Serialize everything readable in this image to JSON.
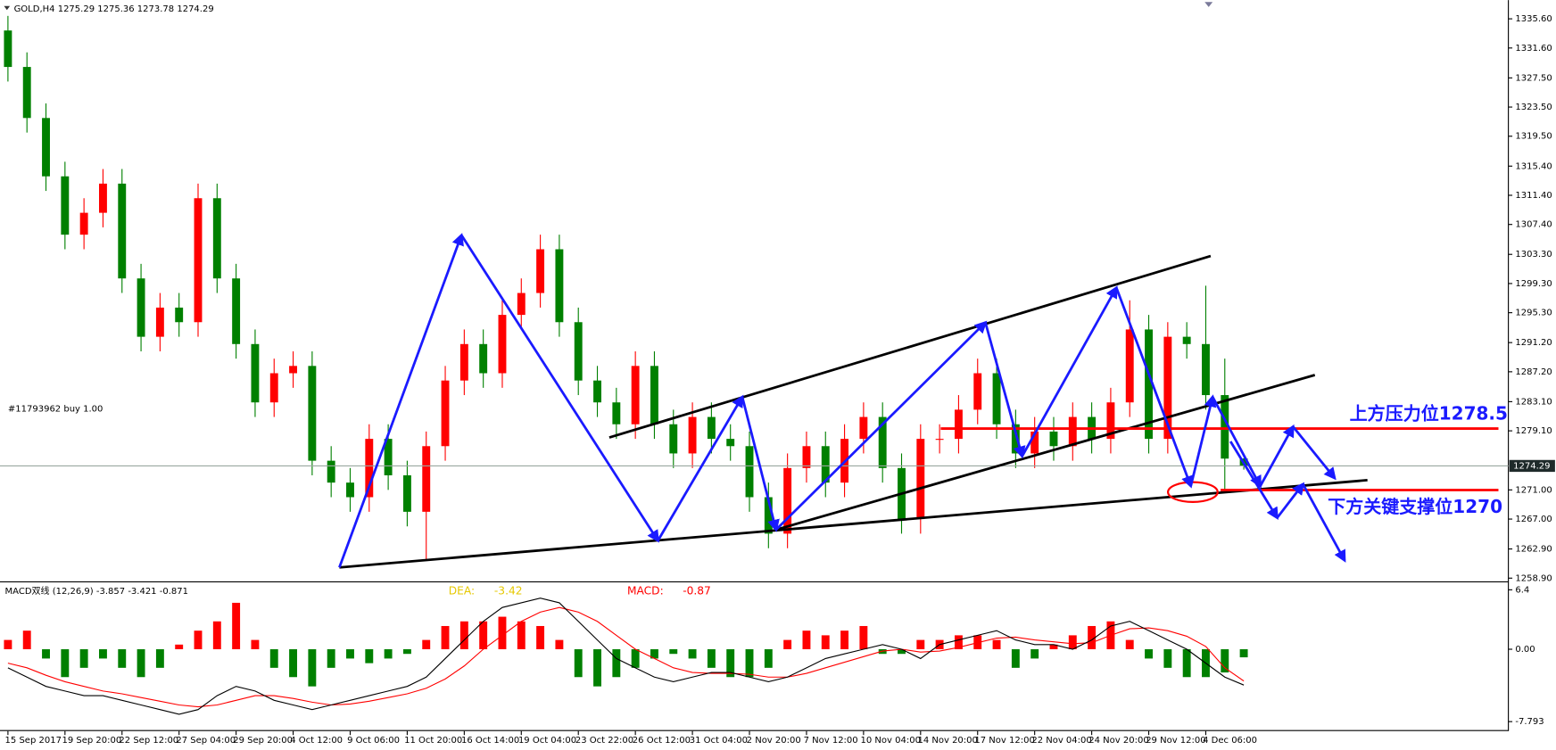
{
  "chart_data": {
    "type": "candlestick",
    "symbol": "GOLD,H4",
    "order_label": "#11793962 buy 1.00",
    "categories": [
      "15 Sep 2017",
      null,
      null,
      "19 Sep 20:00",
      null,
      null,
      "22 Sep 12:00",
      null,
      null,
      "27 Sep 04:00",
      null,
      null,
      "29 Sep 20:00",
      null,
      null,
      "4 Oct 12:00",
      null,
      null,
      "9 Oct 06:00",
      null,
      null,
      "11 Oct 20:00",
      null,
      null,
      "16 Oct 14:00",
      null,
      null,
      "19 Oct 04:00",
      null,
      null,
      "23 Oct 22:00",
      null,
      null,
      "26 Oct 12:00",
      null,
      null,
      "31 Oct 04:00",
      null,
      null,
      "2 Nov 20:00",
      null,
      null,
      "7 Nov 12:00",
      null,
      null,
      "10 Nov 04:00",
      null,
      null,
      "14 Nov 20:00",
      null,
      null,
      "17 Nov 12:00",
      null,
      null,
      "22 Nov 04:00",
      null,
      null,
      "24 Nov 20:00",
      null,
      null,
      "29 Nov 12:00",
      null,
      null,
      "4 Dec 06:00",
      null,
      null
    ],
    "open": [
      1334,
      1329,
      1322,
      1314,
      1306,
      1309,
      1313,
      1300,
      1292,
      1296,
      1294,
      1311,
      1300,
      1291,
      1283,
      1287,
      1288,
      1275,
      1272,
      1270,
      1278,
      1273,
      1268,
      1277,
      1286,
      1291,
      1287,
      1295,
      1298,
      1304,
      1294,
      1286,
      1283,
      1280,
      1288,
      1280,
      1276,
      1281,
      1278,
      1277,
      1270,
      1265,
      1274,
      1277,
      1272,
      1278,
      1281,
      1274,
      1267,
      1278,
      1278,
      1282,
      1287,
      1280,
      1276,
      1279,
      1277,
      1281,
      1278,
      1283,
      1293,
      1278,
      1292,
      1291,
      1284,
      1275.29
    ],
    "high": [
      1336,
      1331,
      1324,
      1316,
      1311,
      1315,
      1315,
      1302,
      1298,
      1298,
      1313,
      1313,
      1302,
      1293,
      1289,
      1290,
      1290,
      1277,
      1274,
      1280,
      1280,
      1275,
      1279,
      1288,
      1293,
      1293,
      1297,
      1300,
      1306,
      1306,
      1296,
      1288,
      1285,
      1290,
      1290,
      1282,
      1283,
      1283,
      1280,
      1279,
      1272,
      1276,
      1279,
      1279,
      1280,
      1283,
      1283,
      1276,
      1280,
      1280,
      1284,
      1289,
      1289,
      1282,
      1281,
      1281,
      1283,
      1283,
      1285,
      1297,
      1295,
      1294,
      1294,
      1299,
      1289,
      1275.36
    ],
    "low": [
      1327,
      1320,
      1312,
      1304,
      1304,
      1307,
      1298,
      1290,
      1290,
      1292,
      1292,
      1298,
      1289,
      1281,
      1281,
      1285,
      1273,
      1270,
      1268,
      1268,
      1271,
      1266,
      1261.5,
      1275,
      1284,
      1285,
      1285,
      1293,
      1296,
      1292,
      1284,
      1281,
      1278,
      1278,
      1278,
      1274,
      1274,
      1276,
      1275,
      1268,
      1263,
      1263,
      1272,
      1270,
      1270,
      1276,
      1272,
      1265,
      1265,
      1276,
      1276,
      1280,
      1278,
      1274,
      1274,
      1275,
      1275,
      1276,
      1276,
      1281,
      1276,
      1276,
      1289,
      1282,
      1271,
      1273.78
    ],
    "close": [
      1329,
      1322,
      1314,
      1306,
      1309,
      1313,
      1300,
      1292,
      1296,
      1294,
      1311,
      1300,
      1291,
      1283,
      1287,
      1288,
      1275,
      1272,
      1270,
      1278,
      1273,
      1268,
      1277,
      1286,
      1291,
      1287,
      1295,
      1298,
      1304,
      1294,
      1286,
      1283,
      1280,
      1288,
      1280,
      1276,
      1281,
      1278,
      1277,
      1270,
      1265,
      1274,
      1277,
      1272,
      1278,
      1281,
      1274,
      1267,
      1278,
      1278,
      1282,
      1287,
      1280,
      1276,
      1279,
      1277,
      1281,
      1278,
      1283,
      1293,
      1278,
      1292,
      1291,
      1284,
      1275.29,
      1274.29
    ],
    "up_color": "#ff0000",
    "down_color": "#008000",
    "ylim": [
      1258.6,
      1337.9
    ],
    "yticks": [
      {
        "value": 1335.6,
        "label": "1335.60"
      },
      {
        "value": 1331.6,
        "label": "1331.60"
      },
      {
        "value": 1327.5,
        "label": "1327.50"
      },
      {
        "value": 1323.5,
        "label": "1323.50"
      },
      {
        "value": 1319.5,
        "label": "1319.50"
      },
      {
        "value": 1315.4,
        "label": "1315.40"
      },
      {
        "value": 1311.4,
        "label": "1311.40"
      },
      {
        "value": 1307.4,
        "label": "1307.40"
      },
      {
        "value": 1303.3,
        "label": "1303.30"
      },
      {
        "value": 1299.3,
        "label": "1299.30"
      },
      {
        "value": 1295.3,
        "label": "1295.30"
      },
      {
        "value": 1291.2,
        "label": "1291.20"
      },
      {
        "value": 1287.2,
        "label": "1287.20"
      },
      {
        "value": 1283.1,
        "label": "1283.10"
      },
      {
        "value": 1279.1,
        "label": "1279.10"
      },
      {
        "value": 1271,
        "label": "1271.00"
      },
      {
        "value": 1267,
        "label": "1267.00"
      },
      {
        "value": 1262.9,
        "label": "1262.90"
      },
      {
        "value": 1258.9,
        "label": "1258.90"
      }
    ],
    "annotations": [
      "上方压力位1278.5",
      "下方关键支撑位1270"
    ],
    "macd": {
      "title": "MACD双线 (12,26,9)",
      "ylim": [
        -8.6,
        7.1
      ],
      "yticks": [
        6.4,
        {
          "value": 0,
          "label": "0.00"
        },
        -7.793
      ],
      "histogram": [
        1,
        2,
        -1,
        -3,
        -2,
        -1,
        -2,
        -3,
        -2,
        0.5,
        2,
        3,
        5,
        1,
        -2,
        -3,
        -4,
        -2,
        -1,
        -1.5,
        -1,
        -0.5,
        1,
        2.5,
        3,
        3,
        3.5,
        3,
        2.5,
        1,
        -3,
        -4,
        -3,
        -2,
        -1,
        -0.5,
        -1,
        -2,
        -3,
        -3,
        -2,
        1,
        2,
        1.5,
        2,
        2.5,
        -0.5,
        -0.5,
        1,
        1,
        1.5,
        1.5,
        1,
        -2,
        -1,
        0.5,
        1.5,
        2.5,
        3,
        1,
        -1,
        -2,
        -3,
        -3,
        -2.5,
        -0.871
      ],
      "dif": [
        -2,
        -3,
        -4,
        -4.5,
        -5,
        -5,
        -5.5,
        -6,
        -6.5,
        -7,
        -6.5,
        -5,
        -4,
        -4.5,
        -5.5,
        -6,
        -6.5,
        -6,
        -5.5,
        -5,
        -4.5,
        -4,
        -3,
        -1,
        1,
        3,
        4.5,
        5,
        5.5,
        5,
        3,
        1,
        -1,
        -2,
        -3,
        -3.5,
        -3,
        -2.5,
        -2.5,
        -3,
        -3.5,
        -3,
        -2,
        -1,
        -0.5,
        0,
        0.5,
        0,
        -1,
        0.5,
        1,
        1.5,
        2,
        1,
        0.5,
        0.5,
        0,
        1,
        2.5,
        3,
        2,
        1,
        0,
        -1.5,
        -3,
        -3.857
      ],
      "dea": [
        -1.5,
        -2,
        -2.8,
        -3.5,
        -4,
        -4.5,
        -4.8,
        -5.2,
        -5.6,
        -6,
        -6.2,
        -6,
        -5.5,
        -5,
        -5,
        -5.3,
        -5.7,
        -6,
        -5.9,
        -5.6,
        -5.2,
        -4.8,
        -4.2,
        -3.2,
        -1.8,
        0,
        1.5,
        3,
        4,
        4.5,
        4,
        3,
        1.5,
        0,
        -1,
        -2,
        -2.5,
        -2.6,
        -2.6,
        -2.7,
        -3,
        -3,
        -2.6,
        -2,
        -1.4,
        -0.8,
        -0.2,
        0,
        -0.3,
        -0.2,
        0.2,
        0.7,
        1.2,
        1.3,
        1,
        0.8,
        0.6,
        0.7,
        1.5,
        2.2,
        2.3,
        2,
        1.4,
        0.3,
        -2,
        -3.421
      ],
      "up_color": "#ff0000",
      "down_color": "#008000",
      "dif_color": "#000000",
      "dea_color": "#ff0000",
      "dea_readout_label": "DEA:",
      "dea_readout": -3.42,
      "macd_readout_label": "MACD:",
      "macd_readout": -0.87
    }
  }
}
